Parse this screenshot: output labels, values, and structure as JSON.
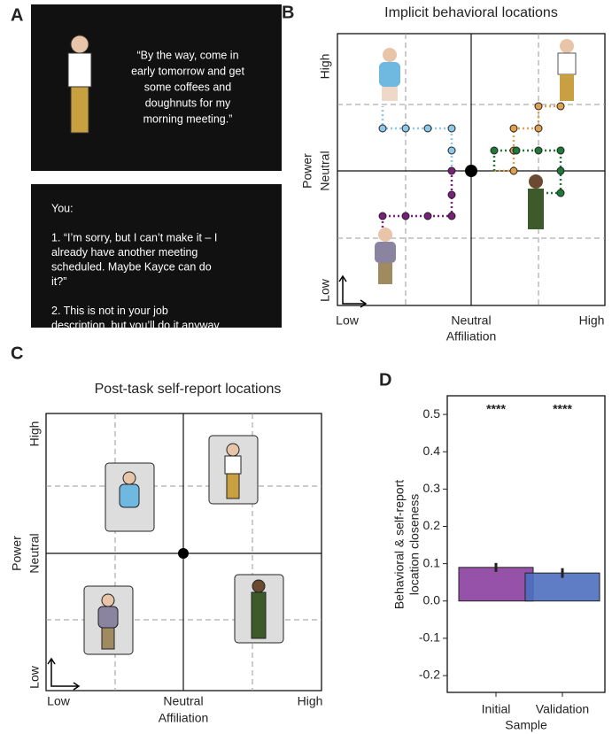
{
  "panel_a": {
    "label": "A",
    "quote_lines": [
      "“By the way, come in",
      "early tomorrow and get",
      "some coffees and",
      "doughnuts for my",
      "morning meeting.”"
    ],
    "response_lines": [
      "You:",
      "",
      "1. “I’m sorry, but I can’t make it – I",
      "already have another meeting",
      "scheduled. Maybe Kayce can do",
      "it?”",
      "",
      "2.  This is not in your job",
      "description, but you’ll do it anyway."
    ]
  },
  "panel_b": {
    "label": "B",
    "title": "Implicit behavioral locations",
    "y_axis": "Power",
    "y_high": "High",
    "y_mid": "Neutral",
    "y_low": "Low",
    "x_axis": "Affiliation",
    "x_low": "Low",
    "x_mid": "Neutral",
    "x_high": "High"
  },
  "panel_c": {
    "label": "C",
    "title": "Post-task self-report locations",
    "y_axis": "Power",
    "y_high": "High",
    "y_mid": "Neutral",
    "y_low": "Low",
    "x_axis": "Affiliation",
    "x_low": "Low",
    "x_mid": "Neutral",
    "x_high": "High"
  },
  "chart_data": {
    "type": "bar",
    "panel_label": "D",
    "categories": [
      "Initial",
      "Validation"
    ],
    "values": [
      0.09,
      0.075
    ],
    "errors": [
      0.012,
      0.013
    ],
    "colors": [
      "#8a3f9e",
      "#4d6fbf"
    ],
    "annotations": [
      "****",
      "****"
    ],
    "xlabel": "Sample",
    "ylabel": [
      "Behavioral & self-report",
      "location closeness"
    ],
    "ylim": [
      -0.245,
      0.55
    ],
    "yticks": [
      -0.2,
      -0.1,
      {
        "value": 0,
        "label": "0.0"
      },
      0.1,
      0.2,
      0.3,
      0.4,
      0.5
    ]
  }
}
